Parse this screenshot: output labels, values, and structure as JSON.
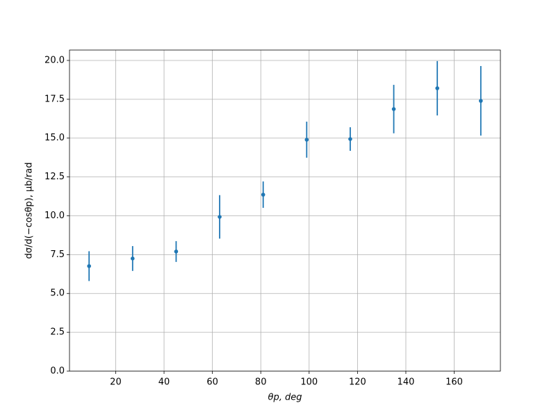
{
  "chart_data": {
    "type": "errorbar",
    "x_label": "θp, deg",
    "y_label": "dσ/d(−cosθp), μb/rad",
    "x": [
      9,
      27,
      45,
      63,
      81,
      99,
      117,
      135,
      153,
      171
    ],
    "series": [
      {
        "color": "#1f77b4",
        "values": [
          6.76,
          7.25,
          7.7,
          9.93,
          11.36,
          14.9,
          14.94,
          16.87,
          18.21,
          17.4
        ],
        "errors": [
          0.96,
          0.8,
          0.67,
          1.4,
          0.85,
          1.16,
          0.76,
          1.56,
          1.75,
          2.24
        ]
      }
    ],
    "xlim": [
      0.9,
      179.1
    ],
    "ylim": [
      0,
      20.67
    ],
    "xticks": [
      20,
      40,
      60,
      80,
      100,
      120,
      140,
      160
    ],
    "yticks": [
      {
        "value": 0,
        "label": "0.0"
      },
      {
        "value": 2.5,
        "label": "2.5"
      },
      {
        "value": 5,
        "label": "5.0"
      },
      {
        "value": 7.5,
        "label": "7.5"
      },
      {
        "value": 10,
        "label": "10.0"
      },
      {
        "value": 12.5,
        "label": "12.5"
      },
      {
        "value": 15,
        "label": "15.0"
      },
      {
        "value": 17.5,
        "label": "17.5"
      },
      {
        "value": 20,
        "label": "20.0"
      }
    ],
    "grid": true
  }
}
